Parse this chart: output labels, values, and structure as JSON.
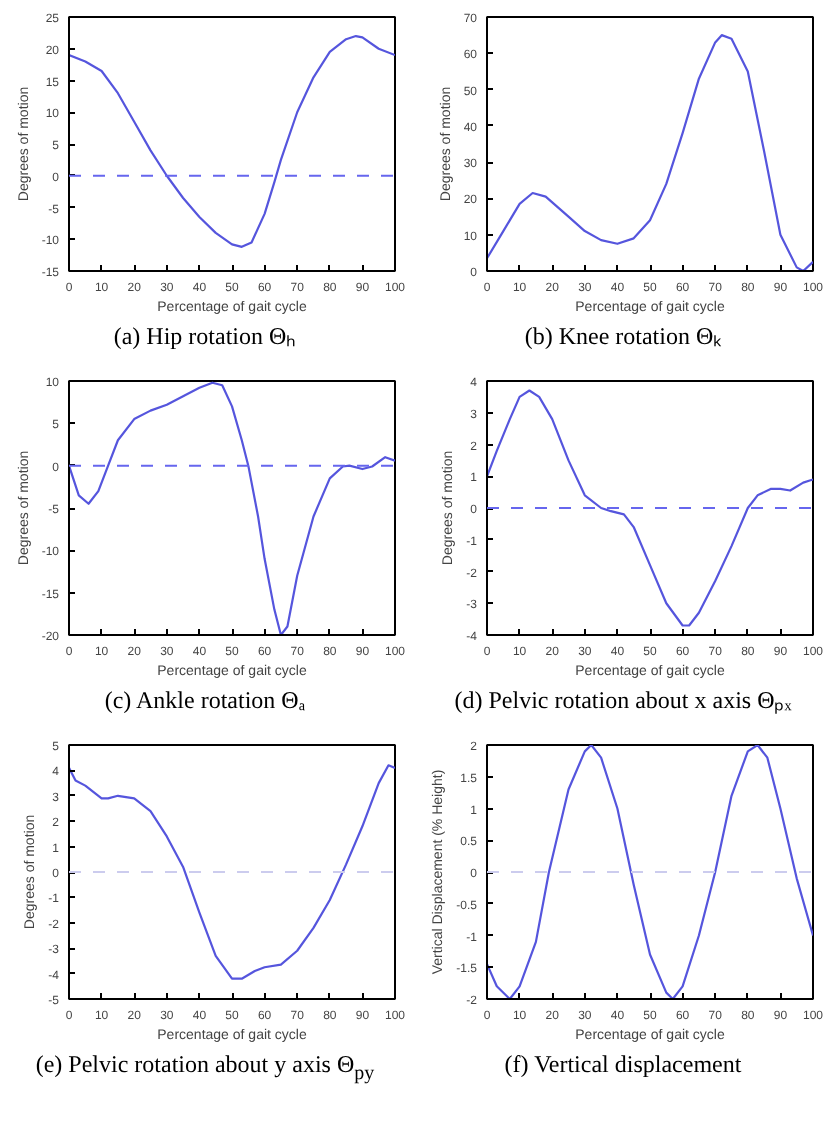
{
  "chart_data": [
    {
      "type": "line",
      "title": "(a) Hip rotation Θₕ",
      "xlabel": "Percentage of gait cycle",
      "ylabel": "Degrees of motion",
      "xlim": [
        0,
        100
      ],
      "ylim": [
        -15,
        25
      ],
      "xticks": [
        0,
        10,
        20,
        30,
        40,
        50,
        60,
        70,
        80,
        90,
        100
      ],
      "yticks": [
        -15,
        -10,
        -5,
        0,
        5,
        10,
        15,
        20,
        25
      ],
      "grid": false,
      "ref_lines": [
        {
          "axis": "y",
          "value": 0,
          "color": "#6666ee",
          "line_style": "dashed"
        }
      ],
      "series": [
        {
          "color": "#5555dd",
          "x": [
            0,
            5,
            10,
            15,
            20,
            25,
            30,
            35,
            40,
            45,
            50,
            53,
            56,
            60,
            63,
            65,
            70,
            75,
            80,
            85,
            88,
            90,
            95,
            100
          ],
          "values": [
            19,
            18,
            16.5,
            13,
            8.5,
            4,
            0,
            -3.5,
            -6.5,
            -9,
            -10.8,
            -11.2,
            -10.5,
            -6,
            -1,
            2.5,
            10,
            15.5,
            19.5,
            21.5,
            22,
            21.8,
            20,
            19
          ]
        }
      ]
    },
    {
      "type": "line",
      "title": "(b) Knee rotation Θₖ",
      "xlabel": "Percentage of gait cycle",
      "ylabel": "Degrees of motion",
      "xlim": [
        0,
        100
      ],
      "ylim": [
        0,
        70
      ],
      "xticks": [
        0,
        10,
        20,
        30,
        40,
        50,
        60,
        70,
        80,
        90,
        100
      ],
      "yticks": [
        0,
        10,
        20,
        30,
        40,
        50,
        60,
        70
      ],
      "grid": false,
      "series": [
        {
          "color": "#5555dd",
          "x": [
            0,
            5,
            10,
            14,
            18,
            25,
            30,
            35,
            40,
            45,
            50,
            55,
            60,
            65,
            70,
            72,
            75,
            80,
            85,
            90,
            95,
            97,
            100
          ],
          "values": [
            3.5,
            11,
            18.5,
            21.5,
            20.5,
            15,
            11,
            8.5,
            7.5,
            9,
            14,
            24,
            38,
            53,
            63,
            65,
            64,
            55,
            33,
            10,
            1,
            0,
            2.5
          ]
        }
      ]
    },
    {
      "type": "line",
      "title": "(c) Ankle rotation Θₐ",
      "xlabel": "Percentage of gait cycle",
      "ylabel": "Degrees of motion",
      "xlim": [
        0,
        100
      ],
      "ylim": [
        -20,
        10
      ],
      "xticks": [
        0,
        10,
        20,
        30,
        40,
        50,
        60,
        70,
        80,
        90,
        100
      ],
      "yticks": [
        -20,
        -15,
        -10,
        -5,
        0,
        5,
        10
      ],
      "grid": false,
      "ref_lines": [
        {
          "axis": "y",
          "value": 0,
          "color": "#6666ee",
          "line_style": "dashed"
        }
      ],
      "series": [
        {
          "color": "#5555dd",
          "x": [
            0,
            3,
            6,
            9,
            12,
            15,
            20,
            25,
            30,
            35,
            40,
            44,
            47,
            50,
            53,
            55,
            58,
            60,
            63,
            65,
            67,
            70,
            75,
            80,
            84,
            86,
            90,
            93,
            97,
            100
          ],
          "values": [
            0,
            -3.5,
            -4.5,
            -3,
            0,
            3,
            5.5,
            6.5,
            7.2,
            8.2,
            9.2,
            9.8,
            9.5,
            7,
            3,
            0,
            -6,
            -11,
            -17,
            -20,
            -19,
            -13,
            -6,
            -1.5,
            -0.1,
            0,
            -0.4,
            -0.1,
            1,
            0.6
          ]
        }
      ]
    },
    {
      "type": "line",
      "title": "(d) Pelvic rotation about x axis Θₚₓ",
      "xlabel": "Percentage of gait cycle",
      "ylabel": "Degrees of motion",
      "xlim": [
        0,
        100
      ],
      "ylim": [
        -4,
        4
      ],
      "xticks": [
        0,
        10,
        20,
        30,
        40,
        50,
        60,
        70,
        80,
        90,
        100
      ],
      "yticks": [
        -4,
        -3,
        -2,
        -1,
        0,
        1,
        2,
        3,
        4
      ],
      "grid": false,
      "ref_lines": [
        {
          "axis": "y",
          "value": 0,
          "color": "#6666ee",
          "line_style": "dashed"
        }
      ],
      "series": [
        {
          "color": "#5555dd",
          "x": [
            0,
            3,
            7,
            10,
            13,
            16,
            20,
            25,
            30,
            35,
            38,
            42,
            45,
            50,
            55,
            60,
            62,
            65,
            70,
            75,
            80,
            83,
            87,
            90,
            93,
            97,
            100
          ],
          "values": [
            1,
            1.8,
            2.8,
            3.5,
            3.7,
            3.5,
            2.8,
            1.5,
            0.4,
            0,
            -0.1,
            -0.2,
            -0.6,
            -1.8,
            -3,
            -3.7,
            -3.7,
            -3.3,
            -2.3,
            -1.2,
            0,
            0.4,
            0.6,
            0.6,
            0.55,
            0.8,
            0.9
          ]
        }
      ]
    },
    {
      "type": "line",
      "title": "(e) Pelvic rotation about y axis Θ$_{py}$",
      "xlabel": "Percentage of gait cycle",
      "ylabel": "Degrees of motion",
      "xlim": [
        0,
        100
      ],
      "ylim": [
        -5,
        5
      ],
      "xticks": [
        0,
        10,
        20,
        30,
        40,
        50,
        60,
        70,
        80,
        90,
        100
      ],
      "yticks": [
        -5,
        -4,
        -3,
        -2,
        -1,
        0,
        1,
        2,
        3,
        4,
        5
      ],
      "grid": false,
      "ref_lines": [
        {
          "axis": "y",
          "value": 0,
          "color": "#ccccee",
          "line_style": "dashed"
        }
      ],
      "series": [
        {
          "color": "#5555dd",
          "x": [
            0,
            2,
            5,
            10,
            12,
            15,
            20,
            25,
            30,
            35,
            40,
            45,
            50,
            53,
            57,
            60,
            65,
            70,
            75,
            80,
            85,
            90,
            95,
            98,
            100
          ],
          "values": [
            4.1,
            3.6,
            3.4,
            2.9,
            2.9,
            3,
            2.9,
            2.4,
            1.4,
            0.2,
            -1.6,
            -3.3,
            -4.2,
            -4.2,
            -3.9,
            -3.75,
            -3.65,
            -3.1,
            -2.2,
            -1.1,
            0.3,
            1.8,
            3.5,
            4.2,
            4.1
          ]
        }
      ]
    },
    {
      "type": "line",
      "title": "(f) Vertical displacement",
      "xlabel": "Percentage of gait cycle",
      "ylabel": "Vertical Displacement (% Height)",
      "xlim": [
        0,
        100
      ],
      "ylim": [
        -2,
        2
      ],
      "xticks": [
        0,
        10,
        20,
        30,
        40,
        50,
        60,
        70,
        80,
        90,
        100
      ],
      "yticks": [
        -2,
        -1.5,
        -1,
        -0.5,
        0,
        0.5,
        1,
        1.5,
        2
      ],
      "grid": false,
      "ref_lines": [
        {
          "axis": "y",
          "value": 0,
          "color": "#ccccee",
          "line_style": "dashed"
        }
      ],
      "series": [
        {
          "color": "#5555dd",
          "x": [
            0,
            3,
            7,
            10,
            15,
            19,
            25,
            30,
            32,
            35,
            40,
            45,
            50,
            55,
            57,
            60,
            65,
            70,
            75,
            80,
            83,
            86,
            90,
            95,
            100
          ],
          "values": [
            -1.45,
            -1.8,
            -2,
            -1.8,
            -1.1,
            0,
            1.3,
            1.9,
            2,
            1.8,
            1,
            -0.2,
            -1.3,
            -1.9,
            -2,
            -1.8,
            -1,
            0,
            1.2,
            1.9,
            2,
            1.8,
            1,
            -0.1,
            -1
          ]
        }
      ]
    }
  ]
}
